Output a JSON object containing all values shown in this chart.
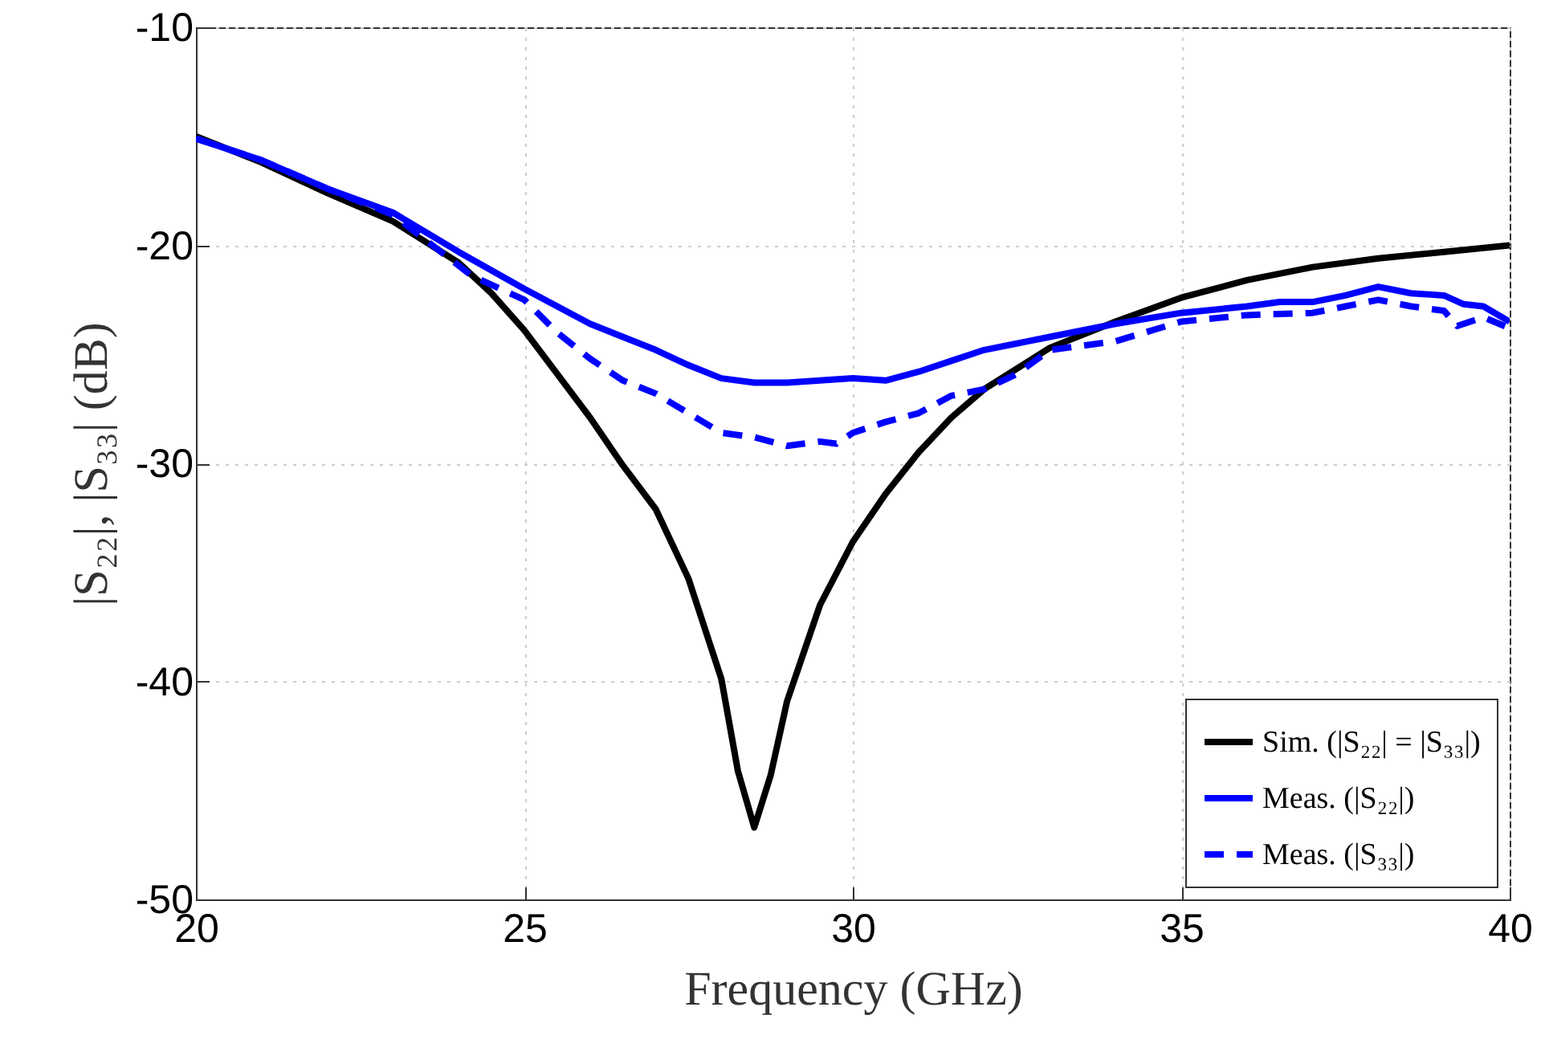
{
  "chart_data": {
    "type": "line",
    "xlabel": "Frequency (GHz)",
    "ylabel": "|S₂₂|, |S₃₃| (dB)",
    "xlim": [
      20,
      40
    ],
    "xticks": [
      20,
      25,
      30,
      35,
      40
    ],
    "ylim": [
      -50,
      -10
    ],
    "yticks": [
      -50,
      -40,
      -30,
      -20,
      -10
    ],
    "grid": true,
    "legend": "bottom right",
    "series": [
      {
        "name": "Sim. (|S₂₂| = |S₃₃|)",
        "color": "#000000",
        "line_style": "solid",
        "x": [
          20,
          21,
          22,
          23,
          24,
          24.5,
          25,
          25.5,
          26,
          26.5,
          27,
          27.5,
          28,
          28.25,
          28.5,
          28.75,
          29,
          29.5,
          30,
          30.5,
          31,
          31.5,
          32,
          33,
          34,
          35,
          36,
          37,
          38,
          39,
          40
        ],
        "values": [
          -15,
          -16.2,
          -17.6,
          -18.9,
          -20.8,
          -22.2,
          -23.9,
          -25.9,
          -27.9,
          -30.1,
          -32.1,
          -35.3,
          -39.9,
          -44.1,
          -46.7,
          -44.3,
          -40.9,
          -36.5,
          -33.6,
          -31.4,
          -29.5,
          -27.9,
          -26.6,
          -24.7,
          -23.5,
          -22.4,
          -21.6,
          -21,
          -20.6,
          -20.3,
          -20
        ]
      },
      {
        "name": "Meas. (|S₂₂|)",
        "color": "#0000ff",
        "line_style": "solid",
        "x": [
          20,
          21,
          22,
          23,
          24,
          25,
          26,
          27,
          27.5,
          28,
          28.5,
          29,
          29.5,
          30,
          30.5,
          31,
          31.5,
          32,
          33,
          34,
          35,
          36,
          36.5,
          37,
          37.5,
          38,
          38.5,
          39,
          39.3,
          39.6,
          40
        ],
        "values": [
          -15.1,
          -16.1,
          -17.4,
          -18.5,
          -20.3,
          -22,
          -23.6,
          -24.8,
          -25.5,
          -26.1,
          -26.3,
          -26.3,
          -26.2,
          -26.1,
          -26.2,
          -25.8,
          -25.3,
          -24.8,
          -24.2,
          -23.6,
          -23.1,
          -22.8,
          -22.6,
          -22.6,
          -22.3,
          -21.9,
          -22.2,
          -22.3,
          -22.7,
          -22.8,
          -23.5
        ]
      },
      {
        "name": "Meas. (|S₃₃|)",
        "color": "#0000ff",
        "line_style": "dashed",
        "x": [
          20,
          21,
          22,
          23,
          24.2,
          25,
          25.5,
          26,
          26.5,
          27,
          27.5,
          28,
          28.5,
          29,
          29.5,
          29.75,
          30,
          30.5,
          31,
          31.5,
          32,
          32.5,
          33,
          34,
          35,
          36,
          37,
          37.5,
          38,
          38.5,
          39,
          39.2,
          39.6,
          40
        ],
        "values": [
          -15.1,
          -16.1,
          -17.4,
          -18.6,
          -21.4,
          -22.5,
          -24,
          -25.2,
          -26.2,
          -26.8,
          -27.7,
          -28.6,
          -28.8,
          -29.2,
          -29,
          -29.1,
          -28.6,
          -28.1,
          -27.7,
          -26.9,
          -26.6,
          -25.9,
          -24.8,
          -24.4,
          -23.5,
          -23.2,
          -23.1,
          -22.8,
          -22.5,
          -22.8,
          -23,
          -23.7,
          -23.3,
          -23.8
        ]
      }
    ]
  }
}
